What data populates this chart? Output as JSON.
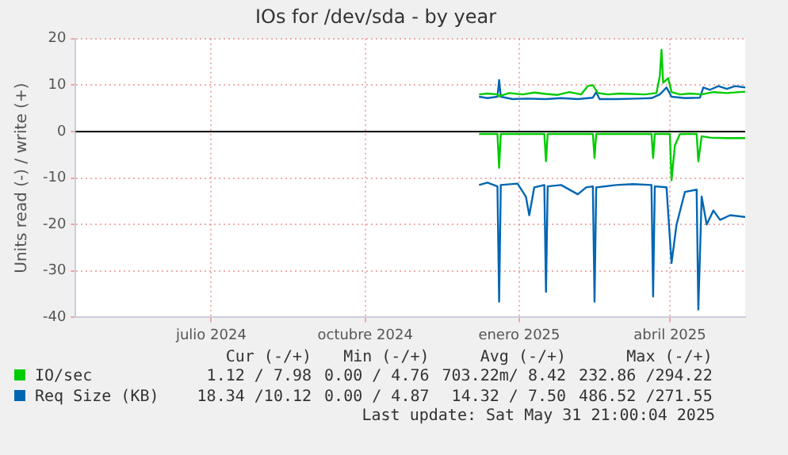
{
  "chart_data": {
    "type": "line",
    "title": "IOs for /dev/sda - by year",
    "ylabel": "Units read (-) / write (+)",
    "xlim": [
      "2024-04-26",
      "2025-05-31"
    ],
    "xticks": [
      {
        "value": "2024-07-16",
        "label": "julio 2024"
      },
      {
        "value": "2024-10-16",
        "label": "octubre 2024"
      },
      {
        "value": "2025-01-16",
        "label": "enero 2025"
      },
      {
        "value": "2025-04-16",
        "label": "abril 2025"
      }
    ],
    "ylim": [
      -40,
      20
    ],
    "yticks": [
      -40,
      -30,
      -20,
      -10,
      0,
      10,
      20
    ],
    "grid": true,
    "legend": "bottom",
    "marker": "none",
    "line_style": "solid",
    "ref_lines": [
      {
        "axis": "y",
        "value": 0,
        "color": "#000000"
      }
    ],
    "series": [
      {
        "name": "IO/sec",
        "color": "#00cc00",
        "x": [
          "2024-12-23",
          "2024-12-28",
          "2025-01-03",
          "2025-01-04",
          "2025-01-10",
          "2025-01-18",
          "2025-01-25",
          "2025-02-01",
          "2025-02-08",
          "2025-02-15",
          "2025-02-22",
          "2025-02-26",
          "2025-03-01",
          "2025-03-04",
          "2025-03-10",
          "2025-03-17",
          "2025-03-24",
          "2025-04-01",
          "2025-04-08",
          "2025-04-10",
          "2025-04-11",
          "2025-04-12",
          "2025-04-15",
          "2025-04-17",
          "2025-04-22",
          "2025-04-28",
          "2025-05-05",
          "2025-05-12",
          "2025-05-20",
          "2025-05-31"
        ],
        "values": [
          8.0,
          8.2,
          8.0,
          7.6,
          8.3,
          8.0,
          8.4,
          8.1,
          7.9,
          8.5,
          8.0,
          9.8,
          10.0,
          8.3,
          8.0,
          8.2,
          8.1,
          8.0,
          8.3,
          12.0,
          17.6,
          10.5,
          11.5,
          8.5,
          8.0,
          8.2,
          8.0,
          8.5,
          8.3,
          8.6
        ]
      },
      {
        "name": "Req Size (KB)",
        "color": "#0066b3",
        "x": [
          "2024-12-23",
          "2024-12-28",
          "2025-01-03",
          "2025-01-04",
          "2025-01-05",
          "2025-01-12",
          "2025-01-20",
          "2025-02-01",
          "2025-02-10",
          "2025-02-20",
          "2025-03-01",
          "2025-03-03",
          "2025-03-05",
          "2025-03-15",
          "2025-03-28",
          "2025-04-05",
          "2025-04-10",
          "2025-04-14",
          "2025-04-17",
          "2025-04-25",
          "2025-05-04",
          "2025-05-06",
          "2025-05-10",
          "2025-05-15",
          "2025-05-20",
          "2025-05-25",
          "2025-05-31"
        ],
        "values": [
          7.5,
          7.2,
          7.5,
          11.1,
          7.5,
          7.0,
          7.1,
          7.0,
          7.2,
          7.0,
          7.3,
          8.5,
          7.0,
          7.0,
          7.1,
          7.2,
          8.0,
          9.5,
          7.5,
          7.2,
          7.3,
          9.5,
          9.0,
          9.8,
          9.2,
          9.8,
          9.5
        ]
      },
      {
        "color": "#00cc00",
        "x": [
          "2024-12-23",
          "2025-01-03",
          "2025-01-04",
          "2025-01-05",
          "2025-01-31",
          "2025-02-01",
          "2025-02-02",
          "2025-03-01",
          "2025-03-02",
          "2025-03-03",
          "2025-04-05",
          "2025-04-06",
          "2025-04-07",
          "2025-04-16",
          "2025-04-17",
          "2025-04-19",
          "2025-04-22",
          "2025-05-02",
          "2025-05-03",
          "2025-05-05",
          "2025-05-10",
          "2025-05-20",
          "2025-05-31"
        ],
        "values": [
          -0.5,
          -0.5,
          -7.8,
          -0.5,
          -0.5,
          -6.4,
          -0.5,
          -0.5,
          -5.7,
          -0.5,
          -0.5,
          -5.7,
          -0.5,
          -0.5,
          -10.5,
          -3.0,
          -0.5,
          -0.5,
          -6.4,
          -1.0,
          -1.3,
          -1.4,
          -1.4
        ]
      },
      {
        "color": "#0066b3",
        "x": [
          "2024-12-23",
          "2024-12-28",
          "2025-01-03",
          "2025-01-04",
          "2025-01-05",
          "2025-01-15",
          "2025-01-20",
          "2025-01-22",
          "2025-01-25",
          "2025-01-31",
          "2025-02-01",
          "2025-02-02",
          "2025-02-10",
          "2025-02-20",
          "2025-02-25",
          "2025-03-01",
          "2025-03-02",
          "2025-03-03",
          "2025-03-15",
          "2025-03-25",
          "2025-04-05",
          "2025-04-06",
          "2025-04-07",
          "2025-04-14",
          "2025-04-17",
          "2025-04-20",
          "2025-04-25",
          "2025-05-02",
          "2025-05-03",
          "2025-05-05",
          "2025-05-08",
          "2025-05-12",
          "2025-05-16",
          "2025-05-22",
          "2025-05-31"
        ],
        "values": [
          -11.5,
          -11.0,
          -11.8,
          -36.6,
          -11.5,
          -11.2,
          -14,
          -18,
          -12.0,
          -11.5,
          -34.5,
          -11.8,
          -11.5,
          -13.5,
          -12.0,
          -11.8,
          -36.6,
          -12.0,
          -11.5,
          -11.3,
          -11.5,
          -35.5,
          -11.8,
          -12.0,
          -28.3,
          -20,
          -13,
          -12.5,
          -38.3,
          -14,
          -20,
          -17,
          -19,
          -18,
          -18.4
        ]
      }
    ],
    "annotations": [
      "Cur (-/+)",
      "Min (-/+)",
      "Avg (-/+)",
      "Max (-/+)",
      "1.12 / 7.98",
      "0.00 / 4.76",
      "703.22m/ 8.42",
      "232.86 /294.22",
      "18.34 /10.12",
      "0.00 / 4.87",
      "14.32 / 7.50",
      "486.52 /271.55",
      "Last update: Sat May 31 21:00:04 2025"
    ]
  }
}
